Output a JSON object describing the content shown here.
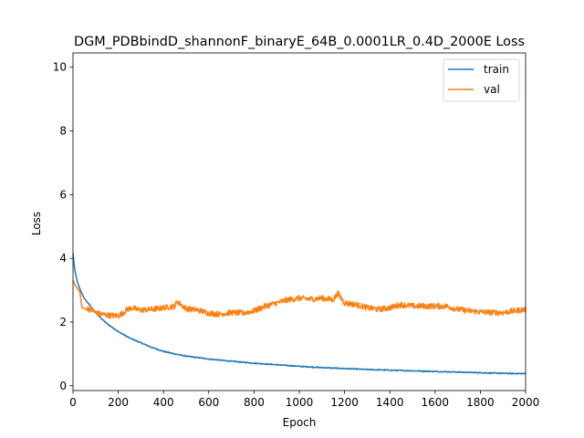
{
  "chart_data": {
    "type": "line",
    "title": "DGM_PDBbindD_shannonF_binaryE_64B_0.0001LR_0.4D_2000E Loss",
    "xlabel": "Epoch",
    "ylabel": "Loss",
    "xlim": [
      0,
      2000
    ],
    "ylim": [
      -0.15,
      10.45
    ],
    "xticks": [
      "0",
      "200",
      "400",
      "600",
      "800",
      "1000",
      "1200",
      "1400",
      "1600",
      "1800",
      "2000"
    ],
    "yticks": [
      "0",
      "2",
      "4",
      "6",
      "8",
      "10"
    ],
    "grid": false,
    "legend_position": "top-right",
    "colors": {
      "train": "#1f77b4",
      "val": "#ff7f0e"
    },
    "series": [
      {
        "name": "train",
        "x": [
          0,
          5,
          10,
          20,
          30,
          40,
          50,
          60,
          80,
          100,
          120,
          150,
          200,
          250,
          300,
          350,
          400,
          450,
          500,
          600,
          700,
          800,
          900,
          1000,
          1100,
          1200,
          1300,
          1400,
          1500,
          1600,
          1700,
          1800,
          1900,
          2000
        ],
        "y": [
          4.15,
          3.8,
          3.55,
          3.25,
          3.05,
          2.88,
          2.75,
          2.65,
          2.47,
          2.3,
          2.15,
          1.95,
          1.7,
          1.5,
          1.35,
          1.2,
          1.08,
          1.0,
          0.93,
          0.84,
          0.77,
          0.71,
          0.66,
          0.61,
          0.57,
          0.54,
          0.51,
          0.49,
          0.47,
          0.45,
          0.43,
          0.41,
          0.39,
          0.38
        ]
      },
      {
        "name": "val",
        "x": [
          0,
          10,
          20,
          30,
          40,
          50,
          60,
          80,
          100,
          120,
          150,
          180,
          200,
          220,
          240,
          260,
          280,
          300,
          350,
          400,
          450,
          460,
          500,
          550,
          600,
          650,
          700,
          750,
          800,
          850,
          900,
          950,
          1000,
          1050,
          1100,
          1150,
          1170,
          1200,
          1250,
          1300,
          1350,
          1400,
          1450,
          1500,
          1550,
          1600,
          1650,
          1700,
          1750,
          1800,
          1850,
          1900,
          1950,
          2000
        ],
        "y": [
          3.3,
          3.15,
          3.05,
          2.95,
          2.45,
          2.42,
          2.42,
          2.4,
          2.3,
          2.25,
          2.22,
          2.2,
          2.2,
          2.28,
          2.4,
          2.45,
          2.4,
          2.38,
          2.4,
          2.45,
          2.5,
          2.65,
          2.42,
          2.38,
          2.28,
          2.25,
          2.3,
          2.28,
          2.35,
          2.5,
          2.6,
          2.7,
          2.75,
          2.72,
          2.75,
          2.7,
          2.9,
          2.6,
          2.55,
          2.45,
          2.4,
          2.45,
          2.55,
          2.5,
          2.5,
          2.5,
          2.5,
          2.4,
          2.35,
          2.32,
          2.3,
          2.3,
          2.35,
          2.4
        ]
      }
    ]
  }
}
